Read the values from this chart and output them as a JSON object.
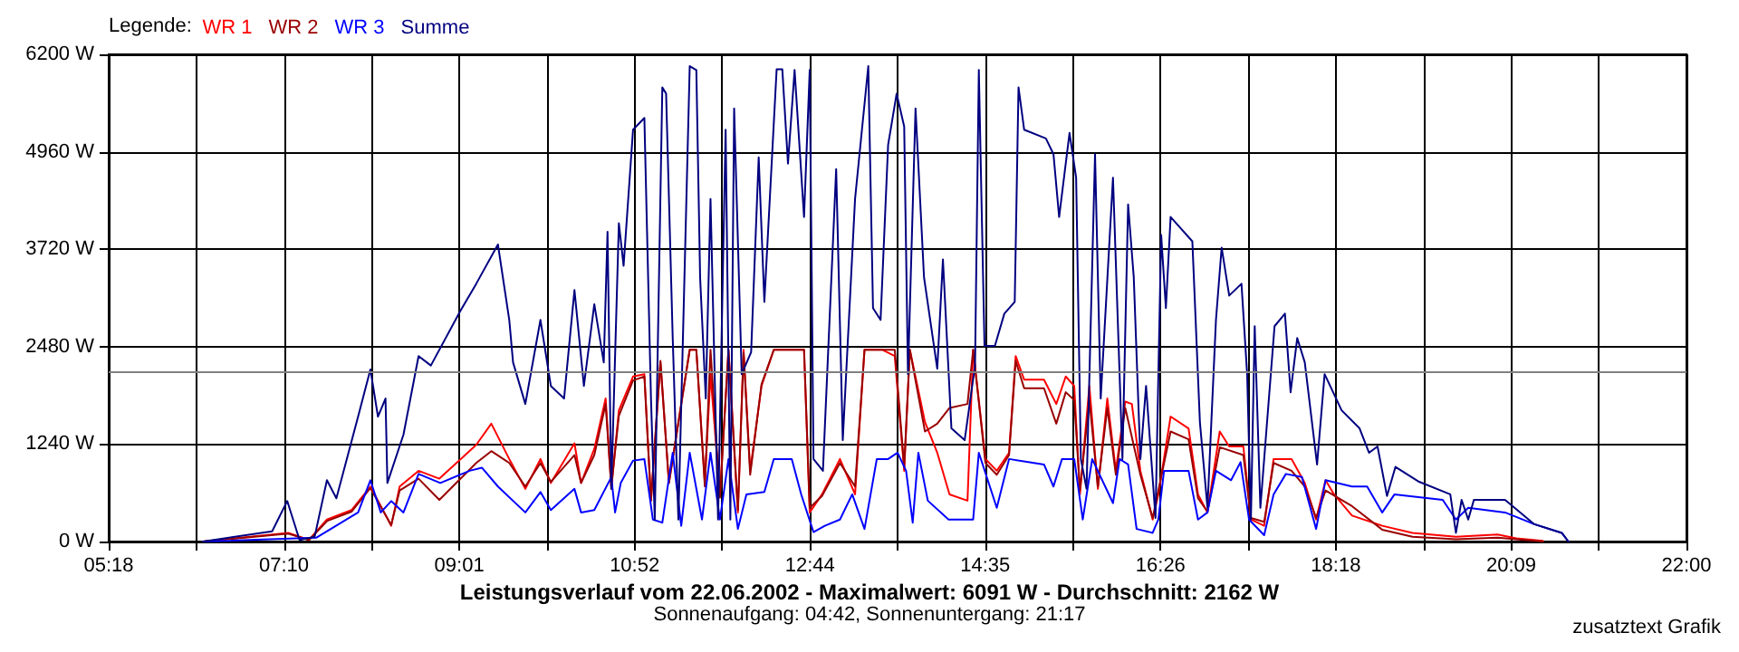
{
  "chart_data": {
    "type": "line",
    "title": "Leistungsverlauf vom 22.06.2002 - Maximalwert: 6091 W - Durchschnitt: 2162 W",
    "subtitle": "Sonnenaufgang: 04:42, Sonnenuntergang: 21:17",
    "legend_title": "Legende:",
    "legend": "top left",
    "grid": true,
    "marker": "none",
    "line_style": "solid",
    "annotations": [
      "zusatztext Grafik"
    ],
    "xlim": [
      5.3,
      22
    ],
    "xticks": [
      {
        "value": 5.3,
        "label": "05:18"
      },
      {
        "value": 6.2333,
        "label": null
      },
      {
        "value": 7.1667,
        "label": "07:10"
      },
      {
        "value": 8.0917,
        "label": null
      },
      {
        "value": 9.0167,
        "label": "09:01"
      },
      {
        "value": 9.9417,
        "label": null
      },
      {
        "value": 10.8667,
        "label": "10:52"
      },
      {
        "value": 11.8,
        "label": null
      },
      {
        "value": 12.7333,
        "label": "12:44"
      },
      {
        "value": 13.6583,
        "label": null
      },
      {
        "value": 14.5833,
        "label": "14:35"
      },
      {
        "value": 15.5083,
        "label": null
      },
      {
        "value": 16.4333,
        "label": "16:26"
      },
      {
        "value": 17.3667,
        "label": null
      },
      {
        "value": 18.3,
        "label": "18:18"
      },
      {
        "value": 19.225,
        "label": null
      },
      {
        "value": 20.15,
        "label": "20:09"
      },
      {
        "value": 21.075,
        "label": null
      },
      {
        "value": 22,
        "label": "22:00"
      }
    ],
    "ylim": [
      0,
      6200
    ],
    "yticks": [
      {
        "value": 0,
        "label": "0 W"
      },
      {
        "value": 1240,
        "label": "1240 W"
      },
      {
        "value": 2480,
        "label": "2480 W"
      },
      {
        "value": 3720,
        "label": "3720 W"
      },
      {
        "value": 4960,
        "label": "4960 W"
      },
      {
        "value": 6200,
        "label": "6200 W"
      }
    ],
    "ref_lines": [
      {
        "axis": "y",
        "value": 2162,
        "color": "#808080"
      }
    ],
    "series": [
      {
        "name": "WR 1",
        "color": "#ff0000",
        "x": [
          6.3,
          7.2,
          7.42,
          7.61,
          7.87,
          8.07,
          8.29,
          8.38,
          8.58,
          8.8,
          9.19,
          9.35,
          9.54,
          9.71,
          9.87,
          9.98,
          10.23,
          10.3,
          10.44,
          10.56,
          10.62,
          10.7,
          10.85,
          10.97,
          11.04,
          11.14,
          11.23,
          11.45,
          11.52,
          11.61,
          11.67,
          11.77,
          11.86,
          11.96,
          12.02,
          12.09,
          12.21,
          12.34,
          12.66,
          12.72,
          12.85,
          13.04,
          13.2,
          13.3,
          13.49,
          13.62,
          13.72,
          13.78,
          13.94,
          14.07,
          14.2,
          14.39,
          14.45,
          14.58,
          14.7,
          14.83,
          14.9,
          14.99,
          15.2,
          15.33,
          15.43,
          15.52,
          15.58,
          15.68,
          15.77,
          15.87,
          15.96,
          16.06,
          16.13,
          16.22,
          16.35,
          16.41,
          16.54,
          16.73,
          16.83,
          16.93,
          17.06,
          17.16,
          17.31,
          17.39,
          17.53,
          17.63,
          17.82,
          17.96,
          18.08,
          18.18,
          18.27,
          18.46,
          18.78,
          19.1,
          19.56,
          20.0,
          20.2,
          20.48
        ],
        "values": [
          0,
          110,
          20,
          280,
          400,
          700,
          200,
          700,
          900,
          800,
          1230,
          1500,
          1050,
          670,
          1050,
          745,
          1250,
          745,
          1180,
          1820,
          670,
          1670,
          2100,
          2130,
          520,
          2280,
          745,
          2440,
          2440,
          745,
          2130,
          600,
          2440,
          370,
          2440,
          900,
          1980,
          2440,
          2440,
          370,
          600,
          1050,
          600,
          2440,
          2440,
          2360,
          900,
          2440,
          1520,
          1130,
          600,
          520,
          2440,
          1050,
          900,
          1130,
          2360,
          2060,
          2060,
          1750,
          2100,
          1980,
          600,
          1980,
          670,
          1820,
          900,
          1780,
          1750,
          900,
          280,
          600,
          1590,
          1440,
          600,
          370,
          1400,
          1210,
          1210,
          280,
          200,
          1050,
          1050,
          745,
          280,
          780,
          600,
          330,
          200,
          110,
          60,
          90,
          40,
          10
        ]
      },
      {
        "name": "WR 2",
        "color": "#990000",
        "x": [
          6.3,
          7.2,
          7.42,
          7.61,
          7.87,
          8.07,
          8.29,
          8.38,
          8.58,
          8.8,
          9.19,
          9.35,
          9.54,
          9.71,
          9.87,
          9.98,
          10.23,
          10.3,
          10.44,
          10.56,
          10.62,
          10.7,
          10.85,
          10.97,
          11.04,
          11.14,
          11.23,
          11.45,
          11.52,
          11.61,
          11.67,
          11.77,
          11.86,
          11.96,
          12.02,
          12.09,
          12.21,
          12.34,
          12.66,
          12.72,
          12.85,
          13.04,
          13.2,
          13.3,
          13.49,
          13.62,
          13.72,
          13.78,
          13.94,
          14.07,
          14.2,
          14.39,
          14.45,
          14.58,
          14.7,
          14.83,
          14.9,
          14.99,
          15.2,
          15.33,
          15.43,
          15.52,
          15.58,
          15.68,
          15.77,
          15.87,
          15.96,
          16.06,
          16.22,
          16.35,
          16.54,
          16.73,
          16.83,
          16.93,
          17.06,
          17.31,
          17.39,
          17.53,
          17.63,
          17.82,
          17.96,
          18.08,
          18.18,
          18.46,
          18.78,
          19.1,
          19.56,
          20.0,
          20.48
        ],
        "values": [
          0,
          100,
          20,
          260,
          380,
          680,
          210,
          650,
          800,
          530,
          1000,
          1150,
          1000,
          700,
          1000,
          760,
          1100,
          745,
          1100,
          1750,
          700,
          1600,
          2050,
          2100,
          520,
          2300,
          745,
          2440,
          2440,
          700,
          2440,
          560,
          2440,
          400,
          2400,
          850,
          2000,
          2440,
          2440,
          430,
          580,
          1000,
          700,
          2440,
          2440,
          2440,
          950,
          2440,
          1400,
          1500,
          1700,
          1750,
          2440,
          1000,
          850,
          1100,
          2300,
          1950,
          1950,
          1500,
          1900,
          1800,
          650,
          1800,
          700,
          1700,
          850,
          1700,
          850,
          300,
          1400,
          1300,
          550,
          380,
          1200,
          1100,
          300,
          250,
          1000,
          900,
          700,
          300,
          650,
          450,
          150,
          60,
          30,
          50,
          0
        ]
      },
      {
        "name": "WR 3",
        "color": "#0000ff",
        "x": [
          6.3,
          7.5,
          7.94,
          8.07,
          8.18,
          8.29,
          8.42,
          8.58,
          8.81,
          9.12,
          9.25,
          9.42,
          9.71,
          9.87,
          9.98,
          10.23,
          10.3,
          10.44,
          10.62,
          10.66,
          10.72,
          10.85,
          10.97,
          11.06,
          11.16,
          11.27,
          11.36,
          11.45,
          11.58,
          11.67,
          11.77,
          11.86,
          11.96,
          12.05,
          12.24,
          12.34,
          12.53,
          12.63,
          12.76,
          12.88,
          13.04,
          13.17,
          13.3,
          13.43,
          13.55,
          13.65,
          13.74,
          13.81,
          13.87,
          13.97,
          14.19,
          14.45,
          14.51,
          14.7,
          14.83,
          15.2,
          15.3,
          15.39,
          15.52,
          15.61,
          15.71,
          15.93,
          16.0,
          16.09,
          16.18,
          16.35,
          16.41,
          16.47,
          16.73,
          16.83,
          16.93,
          17.02,
          17.18,
          17.28,
          17.37,
          17.53,
          17.63,
          17.76,
          17.93,
          18.08,
          18.18,
          18.46,
          18.62,
          18.78,
          18.91,
          19.42,
          19.56,
          19.69,
          20.08,
          20.39,
          20.68,
          20.75
        ],
        "values": [
          0,
          50,
          370,
          780,
          370,
          515,
          370,
          860,
          745,
          900,
          940,
          700,
          370,
          630,
          400,
          670,
          370,
          400,
          820,
          370,
          745,
          1030,
          1050,
          280,
          240,
          1130,
          200,
          1130,
          280,
          1130,
          280,
          1050,
          160,
          600,
          630,
          1050,
          1050,
          600,
          120,
          200,
          280,
          600,
          160,
          1050,
          1050,
          1130,
          900,
          240,
          1130,
          520,
          280,
          280,
          1130,
          430,
          1050,
          980,
          700,
          1050,
          1050,
          280,
          1050,
          490,
          1050,
          980,
          160,
          110,
          280,
          900,
          900,
          280,
          370,
          900,
          780,
          1010,
          280,
          80,
          600,
          860,
          820,
          160,
          780,
          700,
          700,
          370,
          600,
          530,
          280,
          430,
          370,
          220,
          110,
          0
        ]
      },
      {
        "name": "Summe",
        "color": "#000080",
        "x": [
          6.3,
          7.03,
          7.19,
          7.32,
          7.48,
          7.61,
          7.71,
          7.94,
          8.07,
          8.15,
          8.23,
          8.25,
          8.42,
          8.58,
          8.71,
          9.02,
          9.19,
          9.42,
          9.54,
          9.58,
          9.71,
          9.87,
          9.98,
          10.12,
          10.23,
          10.33,
          10.44,
          10.54,
          10.58,
          10.62,
          10.7,
          10.75,
          10.85,
          10.97,
          11.04,
          11.08,
          11.16,
          11.2,
          11.27,
          11.33,
          11.45,
          11.52,
          11.56,
          11.62,
          11.67,
          11.75,
          11.83,
          11.88,
          11.92,
          12.0,
          12.1,
          12.18,
          12.24,
          12.37,
          12.43,
          12.49,
          12.56,
          12.66,
          12.72,
          12.76,
          12.86,
          13.0,
          13.07,
          13.2,
          13.34,
          13.39,
          13.47,
          13.55,
          13.64,
          13.72,
          13.76,
          13.84,
          13.93,
          14.07,
          14.13,
          14.22,
          14.36,
          14.47,
          14.51,
          14.57,
          14.68,
          14.78,
          14.89,
          14.93,
          14.99,
          15.22,
          15.3,
          15.36,
          15.47,
          15.54,
          15.59,
          15.65,
          15.74,
          15.8,
          15.93,
          16.03,
          16.09,
          16.15,
          16.22,
          16.28,
          16.38,
          16.44,
          16.49,
          16.54,
          16.77,
          16.85,
          16.93,
          17.02,
          17.08,
          17.16,
          17.29,
          17.35,
          17.39,
          17.43,
          17.49,
          17.64,
          17.75,
          17.81,
          17.88,
          17.96,
          18.09,
          18.17,
          18.35,
          18.54,
          18.64,
          18.73,
          18.83,
          18.92,
          19.17,
          19.5,
          19.56,
          19.62,
          19.69,
          19.75,
          20.08,
          20.39,
          20.68,
          20.75
        ],
        "values": [
          0,
          130,
          515,
          20,
          60,
          780,
          550,
          1590,
          2190,
          1590,
          1820,
          745,
          1360,
          2360,
          2240,
          2930,
          3280,
          3780,
          2820,
          2280,
          1750,
          2820,
          1980,
          1820,
          3200,
          1980,
          3020,
          2280,
          3940,
          670,
          4050,
          3510,
          5240,
          5390,
          1820,
          280,
          5780,
          5700,
          2590,
          280,
          6050,
          6000,
          3360,
          1820,
          4360,
          280,
          5240,
          280,
          5510,
          2130,
          2410,
          4890,
          3050,
          6010,
          6010,
          4810,
          6000,
          4130,
          6000,
          1050,
          900,
          4740,
          1290,
          4360,
          6050,
          2970,
          2820,
          5050,
          5700,
          5280,
          2130,
          5510,
          3360,
          2200,
          3590,
          1440,
          1290,
          2240,
          6000,
          2490,
          2490,
          2900,
          3050,
          5780,
          5240,
          5130,
          4930,
          4130,
          5200,
          4630,
          1050,
          670,
          4930,
          1820,
          4630,
          1050,
          4290,
          3360,
          1050,
          1980,
          300,
          3900,
          2970,
          4130,
          3820,
          1520,
          430,
          2820,
          3740,
          3130,
          3280,
          2130,
          280,
          2740,
          430,
          2740,
          2900,
          1900,
          2590,
          2280,
          980,
          2130,
          1670,
          1440,
          1130,
          1210,
          580,
          950,
          760,
          600,
          110,
          530,
          280,
          530,
          530,
          220,
          110,
          0
        ]
      }
    ]
  }
}
